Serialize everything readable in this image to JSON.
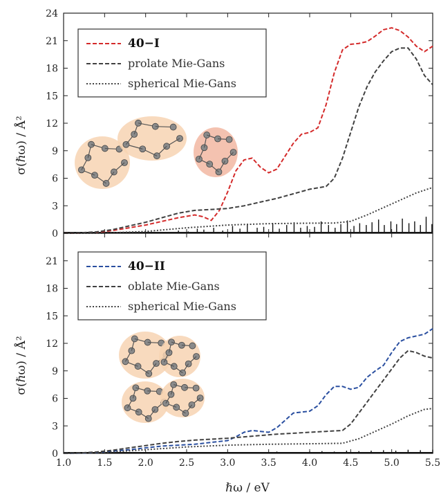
{
  "chart_data": [
    {
      "type": "line",
      "panel": "top",
      "xlabel": "ℏω  /  eV",
      "ylabel": "σ(ℏω)  /  Å²",
      "xlim": [
        1.0,
        5.5
      ],
      "ylim": [
        0,
        24
      ],
      "xticks": [
        "1.0",
        "1.5",
        "2.0",
        "2.5",
        "3.0",
        "3.5",
        "4.0",
        "4.5",
        "5.0",
        "5.5"
      ],
      "yticks": [
        "0",
        "3",
        "6",
        "9",
        "12",
        "15",
        "18",
        "21",
        "24"
      ],
      "legend_position": "top-left",
      "series": [
        {
          "name": "40−I",
          "style": "dashed",
          "color": "#d42a2a",
          "x": [
            1.0,
            1.2,
            1.4,
            1.6,
            1.8,
            2.0,
            2.2,
            2.4,
            2.6,
            2.7,
            2.8,
            2.9,
            3.0,
            3.1,
            3.2,
            3.3,
            3.4,
            3.5,
            3.6,
            3.7,
            3.8,
            3.9,
            4.0,
            4.1,
            4.2,
            4.3,
            4.4,
            4.5,
            4.6,
            4.7,
            4.8,
            4.9,
            5.0,
            5.1,
            5.2,
            5.3,
            5.4,
            5.5
          ],
          "y": [
            0.0,
            0.02,
            0.1,
            0.3,
            0.6,
            0.9,
            1.3,
            1.7,
            2.0,
            1.8,
            1.4,
            2.5,
            4.5,
            6.8,
            8.0,
            8.2,
            7.2,
            6.6,
            7.0,
            8.4,
            9.8,
            10.8,
            11.0,
            11.5,
            14.0,
            17.5,
            20.0,
            20.6,
            20.7,
            20.9,
            21.5,
            22.2,
            22.4,
            22.1,
            21.4,
            20.4,
            19.8,
            20.4
          ]
        },
        {
          "name": "prolate Mie-Gans",
          "style": "dashed",
          "color": "#404040",
          "x": [
            1.0,
            1.2,
            1.4,
            1.6,
            1.8,
            2.0,
            2.2,
            2.4,
            2.6,
            2.8,
            3.0,
            3.2,
            3.4,
            3.6,
            3.8,
            4.0,
            4.2,
            4.3,
            4.4,
            4.5,
            4.6,
            4.7,
            4.8,
            4.9,
            5.0,
            5.1,
            5.2,
            5.3,
            5.4,
            5.5
          ],
          "y": [
            0.0,
            0.05,
            0.15,
            0.4,
            0.8,
            1.2,
            1.7,
            2.2,
            2.5,
            2.6,
            2.7,
            3.0,
            3.4,
            3.8,
            4.3,
            4.8,
            5.1,
            6.0,
            8.2,
            11.0,
            13.8,
            16.0,
            17.6,
            18.8,
            19.8,
            20.2,
            20.2,
            19.0,
            17.2,
            16.2
          ]
        },
        {
          "name": "spherical Mie-Gans",
          "style": "dotted",
          "color": "#404040",
          "x": [
            1.0,
            1.5,
            2.0,
            2.5,
            3.0,
            3.5,
            4.0,
            4.3,
            4.5,
            4.7,
            4.9,
            5.1,
            5.3,
            5.5
          ],
          "y": [
            0.0,
            0.02,
            0.2,
            0.6,
            0.9,
            1.05,
            1.1,
            1.12,
            1.3,
            2.0,
            2.8,
            3.6,
            4.4,
            5.0
          ]
        }
      ],
      "spectrum": {
        "name": "stick spectrum",
        "color": "#111111",
        "x": [
          2.4,
          2.52,
          2.63,
          2.71,
          2.83,
          2.94,
          3.06,
          3.15,
          3.24,
          3.36,
          3.44,
          3.55,
          3.63,
          3.72,
          3.81,
          3.89,
          3.97,
          4.06,
          4.14,
          4.23,
          4.31,
          4.38,
          4.46,
          4.54,
          4.61,
          4.69,
          4.76,
          4.84,
          4.91,
          4.99,
          5.06,
          5.13,
          5.21,
          5.28,
          5.35,
          5.42,
          5.49
        ],
        "y": [
          0.3,
          0.2,
          0.5,
          0.4,
          0.6,
          0.3,
          0.8,
          0.5,
          1.0,
          0.6,
          0.7,
          1.1,
          0.5,
          0.9,
          1.2,
          0.6,
          0.8,
          0.7,
          1.3,
          0.9,
          0.6,
          1.0,
          1.4,
          0.8,
          1.1,
          0.9,
          1.2,
          1.5,
          0.9,
          1.3,
          1.0,
          1.6,
          1.1,
          1.3,
          0.9,
          1.8,
          1.0
        ]
      }
    },
    {
      "type": "line",
      "panel": "bottom",
      "xlabel": "ℏω  /  eV",
      "ylabel": "σ(ℏω)  /  Å²",
      "xlim": [
        1.0,
        5.5
      ],
      "ylim": [
        0,
        24
      ],
      "xticks": [
        "1.0",
        "1.5",
        "2.0",
        "2.5",
        "3.0",
        "3.5",
        "4.0",
        "4.5",
        "5.0",
        "5.5"
      ],
      "yticks": [
        "0",
        "3",
        "6",
        "9",
        "12",
        "15",
        "18",
        "21"
      ],
      "legend_position": "top-left",
      "series": [
        {
          "name": "40−II",
          "style": "dashed",
          "color": "#2a4fa0",
          "x": [
            1.0,
            1.2,
            1.4,
            1.6,
            1.8,
            2.0,
            2.2,
            2.4,
            2.6,
            2.8,
            3.0,
            3.1,
            3.2,
            3.3,
            3.4,
            3.5,
            3.6,
            3.7,
            3.8,
            3.9,
            4.0,
            4.1,
            4.2,
            4.3,
            4.4,
            4.5,
            4.6,
            4.7,
            4.8,
            4.9,
            5.0,
            5.1,
            5.2,
            5.3,
            5.4,
            5.5
          ],
          "y": [
            0.0,
            0.03,
            0.1,
            0.25,
            0.4,
            0.6,
            0.8,
            0.9,
            1.0,
            1.2,
            1.4,
            1.8,
            2.3,
            2.5,
            2.4,
            2.3,
            2.8,
            3.6,
            4.4,
            4.5,
            4.6,
            5.2,
            6.4,
            7.3,
            7.3,
            7.0,
            7.2,
            8.3,
            9.0,
            9.6,
            11.0,
            12.2,
            12.6,
            12.8,
            13.0,
            13.6
          ]
        },
        {
          "name": "oblate Mie-Gans",
          "style": "dashed",
          "color": "#404040",
          "x": [
            1.0,
            1.2,
            1.4,
            1.6,
            1.8,
            2.0,
            2.2,
            2.4,
            2.6,
            2.8,
            3.0,
            3.2,
            3.4,
            3.6,
            3.8,
            4.0,
            4.2,
            4.4,
            4.5,
            4.6,
            4.7,
            4.8,
            4.9,
            5.0,
            5.1,
            5.2,
            5.3,
            5.4,
            5.5
          ],
          "y": [
            0.0,
            0.05,
            0.15,
            0.35,
            0.6,
            0.85,
            1.1,
            1.3,
            1.45,
            1.55,
            1.65,
            1.8,
            1.95,
            2.1,
            2.2,
            2.3,
            2.4,
            2.5,
            3.2,
            4.4,
            5.6,
            6.8,
            8.0,
            9.2,
            10.4,
            11.2,
            11.0,
            10.6,
            10.4
          ]
        },
        {
          "name": "spherical Mie-Gans",
          "style": "dotted",
          "color": "#404040",
          "x": [
            1.0,
            1.5,
            2.0,
            2.5,
            3.0,
            3.5,
            4.0,
            4.4,
            4.6,
            4.8,
            5.0,
            5.2,
            5.4,
            5.5
          ],
          "y": [
            0.0,
            0.1,
            0.4,
            0.7,
            0.9,
            1.0,
            1.05,
            1.1,
            1.6,
            2.4,
            3.2,
            4.1,
            4.8,
            4.9
          ]
        }
      ],
      "spectrum": {
        "name": "stick spectrum",
        "color": "#111111",
        "x": [
          3.0,
          3.2,
          3.4,
          3.6,
          3.8,
          4.0,
          4.15,
          4.3,
          4.45,
          4.6,
          4.75,
          4.9,
          5.05,
          5.2,
          5.35,
          5.5
        ],
        "y": [
          0.1,
          0.15,
          0.1,
          0.2,
          0.15,
          0.2,
          0.25,
          0.2,
          0.3,
          0.25,
          0.3,
          0.35,
          0.3,
          0.4,
          0.35,
          0.4
        ]
      }
    }
  ]
}
